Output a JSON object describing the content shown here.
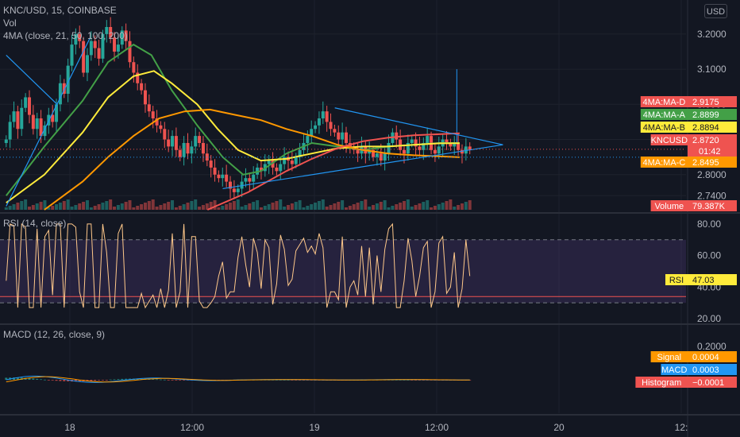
{
  "legend": {
    "symbol": "KNC/USD, 15, COINBASE",
    "vol": "Vol",
    "ma": "4MA (close, 21, 50, 100, 200)",
    "rsi": "RSI (14, close)",
    "macd": "MACD (12, 26, close, 9)"
  },
  "currency_button": "USD",
  "colors": {
    "background": "#131722",
    "up": "#26a69a",
    "down": "#ef5350",
    "ma_a": "#43a047",
    "ma_b": "#ffeb3b",
    "ma_c": "#ff9800",
    "ma_d": "#ef5350",
    "trend": "#2196f3",
    "rsi_line": "#ffc88a",
    "rsi_band": "#7e57c2",
    "macd_line": "#2196f3",
    "signal_line": "#ff9800"
  },
  "price_axis": {
    "ticks": [
      "3.2000",
      "3.1000",
      "3.0000",
      "2.9000",
      "2.8000",
      "2.7400"
    ],
    "tick_values": [
      3.2,
      3.1,
      3.0,
      2.9,
      2.8,
      2.74
    ],
    "range": [
      2.7,
      3.24
    ]
  },
  "rsi_axis": {
    "ticks": [
      "80.00",
      "60.00",
      "40.00",
      "20.00"
    ],
    "tick_values": [
      80,
      60,
      40,
      20
    ],
    "range": [
      18,
      86
    ],
    "band": [
      30,
      70
    ]
  },
  "macd_axis": {
    "ticks": [
      "0.2000"
    ],
    "tick_values": [
      0.2
    ],
    "range": [
      -0.06,
      0.22
    ]
  },
  "time_axis": {
    "labels": [
      "18",
      "12:00",
      "19",
      "12:00",
      "20",
      "12:"
    ],
    "bar_index": [
      0,
      48,
      96,
      144,
      192,
      240
    ],
    "total_bars": 240,
    "first_bar_index": -25,
    "last_bar_index": 157
  },
  "price_tags": [
    {
      "label": "4MA:MA-D",
      "value": "2.9175",
      "color": "#ef5350",
      "price": 2.9175
    },
    {
      "label": "4MA:MA-A",
      "value": "2.8899",
      "color": "#43a047",
      "price": 2.8899
    },
    {
      "label": "4MA:MA-B",
      "value": "2.8894",
      "color": "#ffeb3b",
      "price": 2.8894
    },
    {
      "label": "KNCUSD",
      "value": "2.8720",
      "extra": "01:42",
      "color": "#ef5350",
      "price": 2.872
    },
    {
      "label": "4MA:MA-C",
      "value": "2.8495",
      "color": "#ff9800",
      "price": 2.8495
    },
    {
      "label": "Volume",
      "value": "79.387K",
      "color": "#ef5350",
      "price": 2.7
    }
  ],
  "rsi_tag": {
    "label": "RSI",
    "value": "47.03",
    "color": "#ffeb3b",
    "level": 47.03
  },
  "macd_tags": [
    {
      "label": "Signal",
      "value": "0.0004",
      "color": "#ff9800"
    },
    {
      "label": "MACD",
      "value": "0.0003",
      "color": "#2196f3"
    },
    {
      "label": "Histogram",
      "value": "−0.0001",
      "color": "#ef5350"
    }
  ],
  "chart_data": {
    "type": "candlestick",
    "title": "KNC/USD, 15, COINBASE",
    "ohlc_close": [
      2.9,
      2.95,
      2.98,
      2.93,
      2.99,
      3.02,
      2.97,
      2.93,
      2.96,
      2.91,
      2.94,
      2.97,
      2.95,
      3.0,
      3.06,
      3.03,
      3.11,
      3.17,
      3.2,
      3.18,
      3.09,
      3.14,
      3.18,
      3.16,
      3.13,
      3.2,
      3.22,
      3.19,
      3.15,
      3.17,
      3.21,
      3.18,
      3.12,
      3.09,
      3.06,
      3.04,
      3.0,
      2.98,
      2.96,
      2.94,
      2.93,
      2.9,
      2.88,
      2.91,
      2.87,
      2.85,
      2.89,
      2.86,
      2.88,
      2.91,
      2.89,
      2.86,
      2.84,
      2.82,
      2.8,
      2.79,
      2.8,
      2.78,
      2.76,
      2.75,
      2.76,
      2.78,
      2.79,
      2.78,
      2.8,
      2.82,
      2.81,
      2.83,
      2.84,
      2.82,
      2.81,
      2.83,
      2.85,
      2.84,
      2.83,
      2.85,
      2.87,
      2.89,
      2.91,
      2.93,
      2.94,
      2.96,
      2.98,
      2.95,
      2.93,
      2.92,
      2.9,
      2.92,
      2.89,
      2.88,
      2.87,
      2.86,
      2.88,
      2.86,
      2.87,
      2.85,
      2.86,
      2.84,
      2.86,
      2.89,
      2.92,
      2.9,
      2.87,
      2.86,
      2.89,
      2.9,
      2.88,
      2.87,
      2.89,
      2.91,
      2.87,
      2.86,
      2.88,
      2.9,
      2.89,
      2.88,
      2.89,
      2.87,
      2.86,
      2.88,
      2.87
    ],
    "ma_a": [
      [
        -25,
        2.74
      ],
      [
        -10,
        2.88
      ],
      [
        5,
        3.01
      ],
      [
        15,
        3.12
      ],
      [
        25,
        3.17
      ],
      [
        32,
        3.14
      ],
      [
        40,
        3.04
      ],
      [
        50,
        2.94
      ],
      [
        60,
        2.85
      ],
      [
        68,
        2.8
      ],
      [
        75,
        2.81
      ],
      [
        85,
        2.86
      ],
      [
        95,
        2.89
      ],
      [
        105,
        2.88
      ],
      [
        115,
        2.87
      ],
      [
        125,
        2.88
      ],
      [
        135,
        2.885
      ],
      [
        145,
        2.89
      ],
      [
        153,
        2.8899
      ]
    ],
    "ma_b": [
      [
        -25,
        2.72
      ],
      [
        -10,
        2.8
      ],
      [
        5,
        2.92
      ],
      [
        15,
        3.02
      ],
      [
        25,
        3.08
      ],
      [
        33,
        3.095
      ],
      [
        40,
        3.06
      ],
      [
        50,
        3.0
      ],
      [
        58,
        2.93
      ],
      [
        66,
        2.87
      ],
      [
        75,
        2.84
      ],
      [
        85,
        2.845
      ],
      [
        95,
        2.86
      ],
      [
        105,
        2.875
      ],
      [
        115,
        2.88
      ],
      [
        125,
        2.88
      ],
      [
        135,
        2.885
      ],
      [
        145,
        2.889
      ],
      [
        153,
        2.8894
      ]
    ],
    "ma_c": [
      [
        -10,
        2.7
      ],
      [
        5,
        2.78
      ],
      [
        15,
        2.85
      ],
      [
        25,
        2.91
      ],
      [
        35,
        2.96
      ],
      [
        45,
        2.98
      ],
      [
        55,
        2.985
      ],
      [
        65,
        2.97
      ],
      [
        75,
        2.955
      ],
      [
        85,
        2.93
      ],
      [
        95,
        2.91
      ],
      [
        105,
        2.885
      ],
      [
        115,
        2.87
      ],
      [
        125,
        2.86
      ],
      [
        135,
        2.855
      ],
      [
        145,
        2.852
      ],
      [
        153,
        2.8495
      ]
    ],
    "ma_d": [
      [
        54,
        2.7
      ],
      [
        70,
        2.75
      ],
      [
        85,
        2.81
      ],
      [
        95,
        2.845
      ],
      [
        105,
        2.875
      ],
      [
        115,
        2.895
      ],
      [
        125,
        2.905
      ],
      [
        135,
        2.912
      ],
      [
        145,
        2.915
      ],
      [
        153,
        2.9175
      ]
    ],
    "trendlines": [
      [
        [
          -25,
          3.14
        ],
        [
          -5,
          3.0
        ]
      ],
      [
        [
          -25,
          2.71
        ],
        [
          8,
          3.19
        ]
      ],
      [
        [
          104,
          2.99
        ],
        [
          170,
          2.885
        ]
      ],
      [
        [
          60,
          2.76
        ],
        [
          170,
          2.885
        ]
      ]
    ],
    "spike": {
      "bar": 160,
      "high": 3.1,
      "low": 2.89
    },
    "volume_last": "79.387K",
    "rsi": {
      "period": 14,
      "last": 47.03,
      "min": 27,
      "max": 80
    },
    "macd": {
      "fast": 12,
      "slow": 26,
      "signal": 9,
      "macd_last": 0.0003,
      "signal_last": 0.0004,
      "histogram_last": -0.0001
    }
  }
}
